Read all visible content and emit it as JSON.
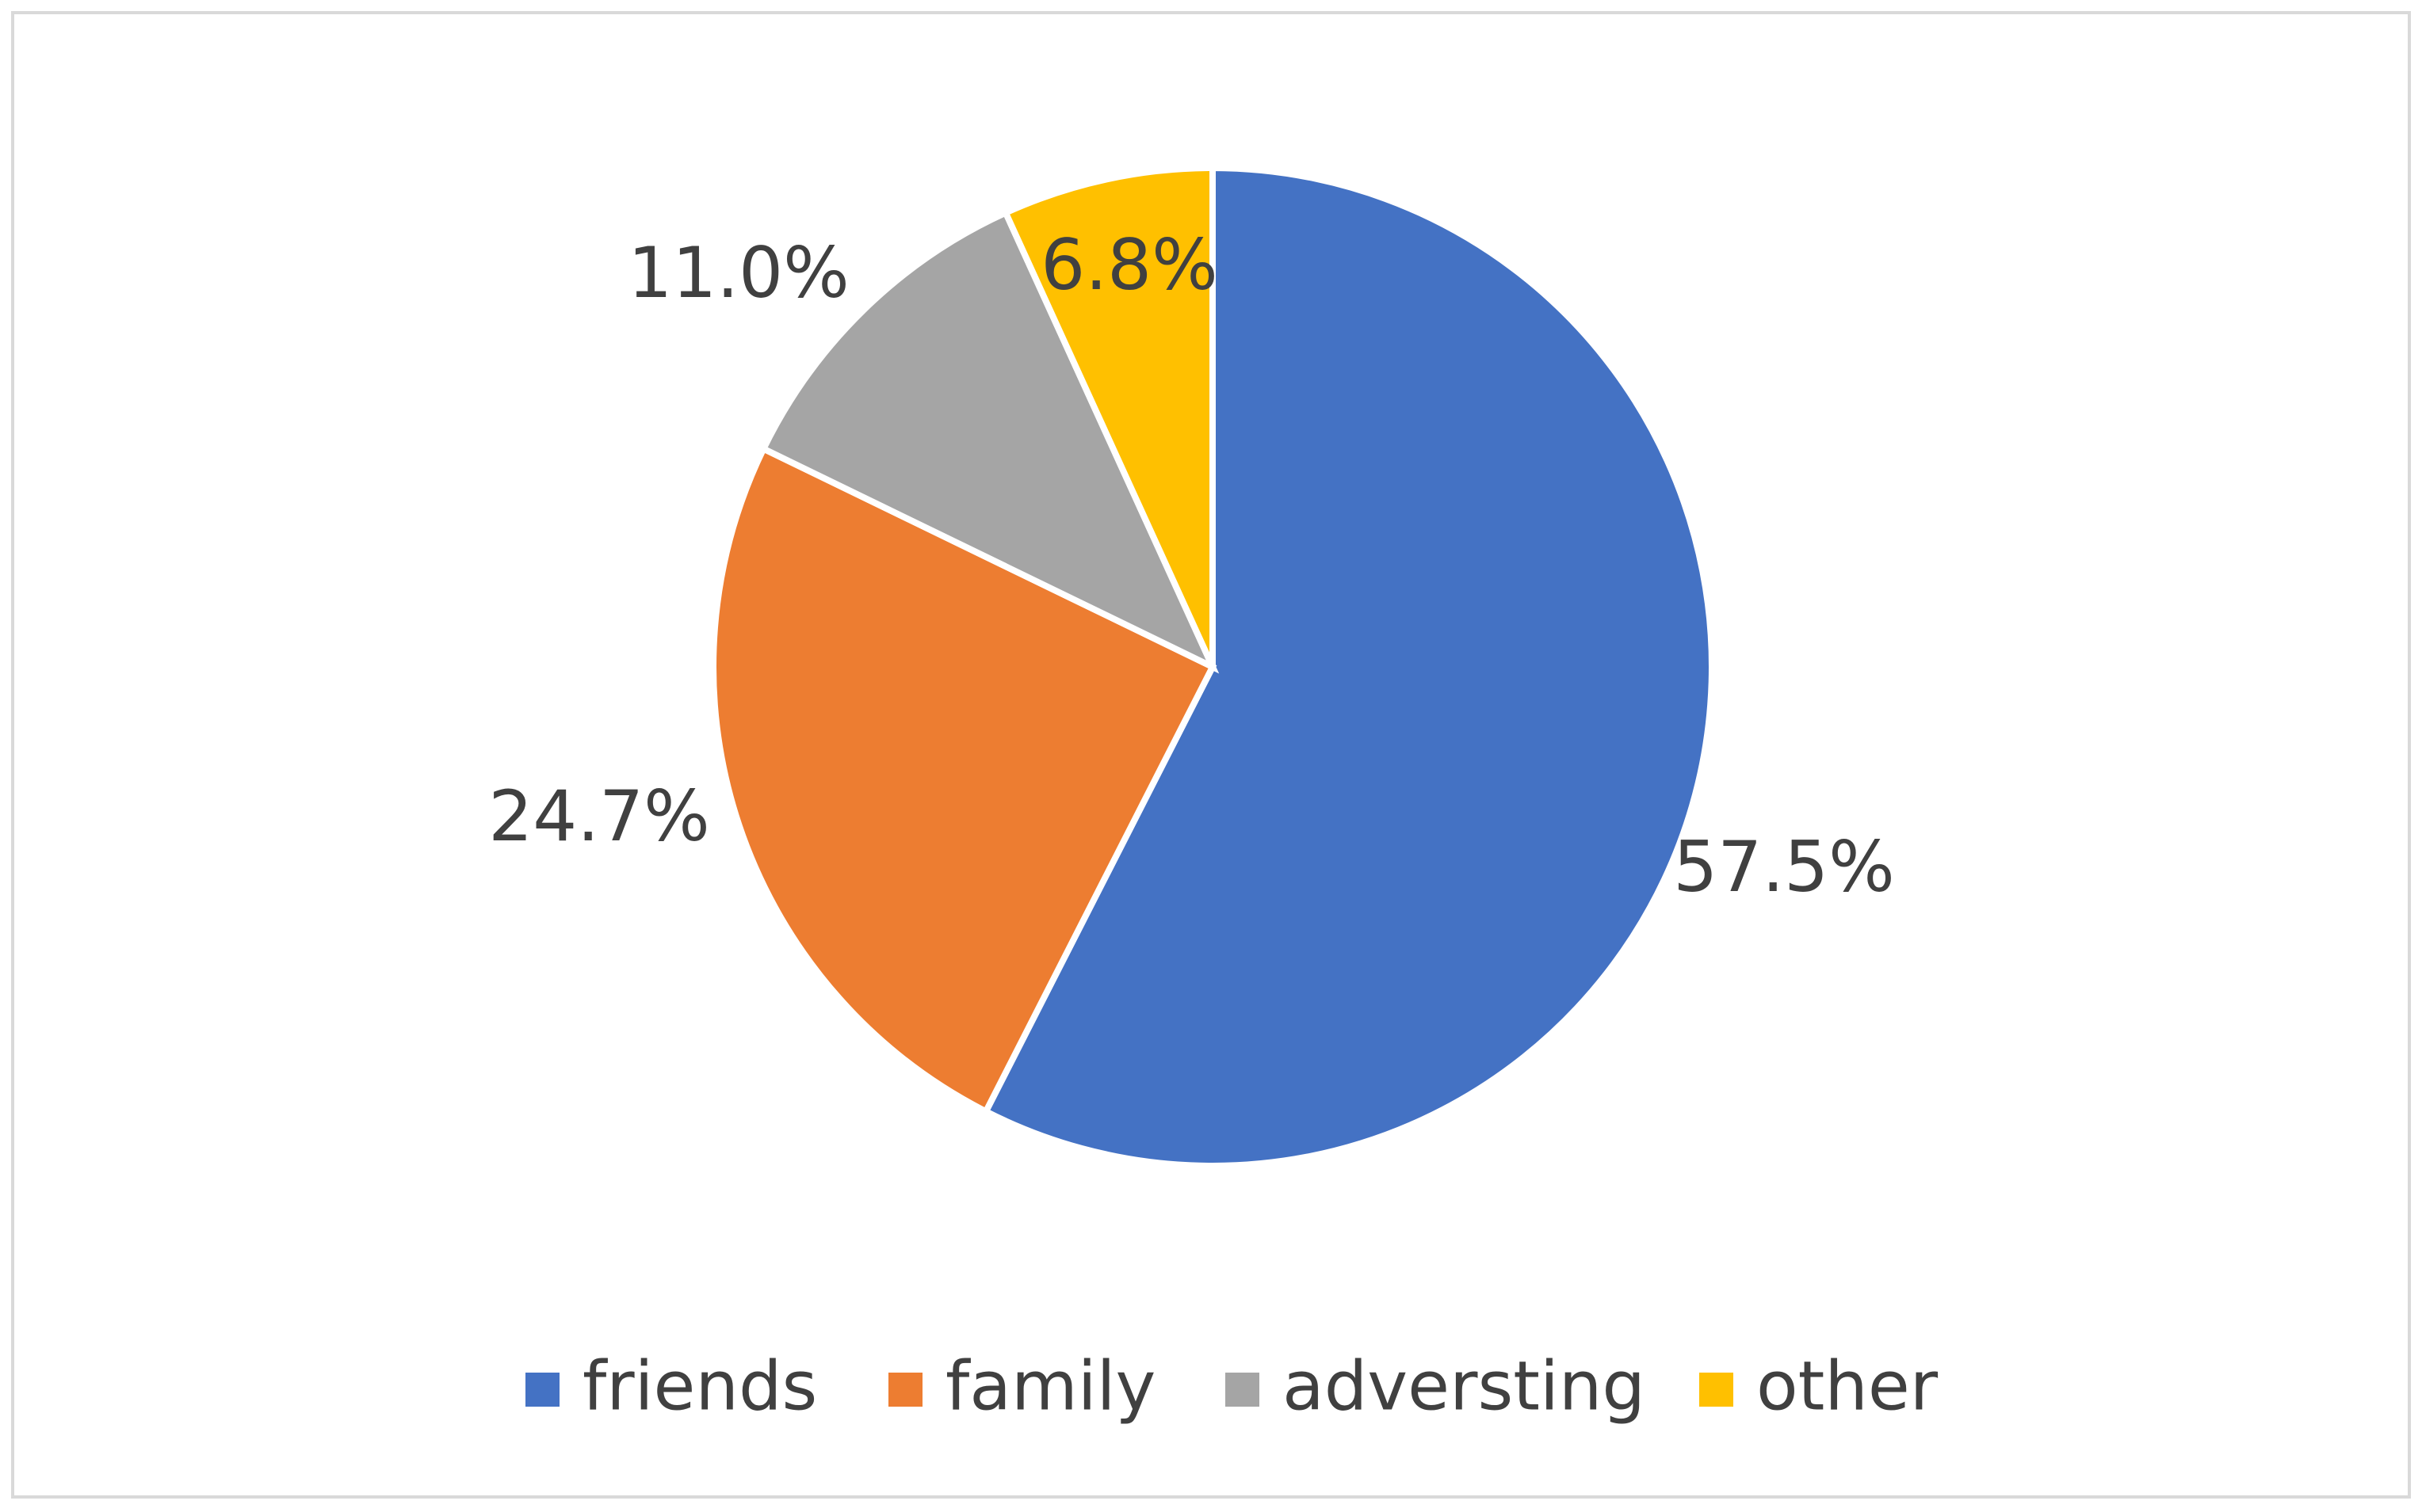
{
  "chart_data": {
    "type": "pie",
    "categories": [
      "friends",
      "family",
      "adversting",
      "other"
    ],
    "values": [
      57.5,
      24.7,
      11.0,
      6.8
    ],
    "value_labels": [
      "57.5%",
      "24.7%",
      "11.0%",
      "6.8%"
    ],
    "colors": [
      "#4472c4",
      "#ed7d31",
      "#a5a5a5",
      "#ffc000"
    ],
    "legend": "bottom"
  }
}
